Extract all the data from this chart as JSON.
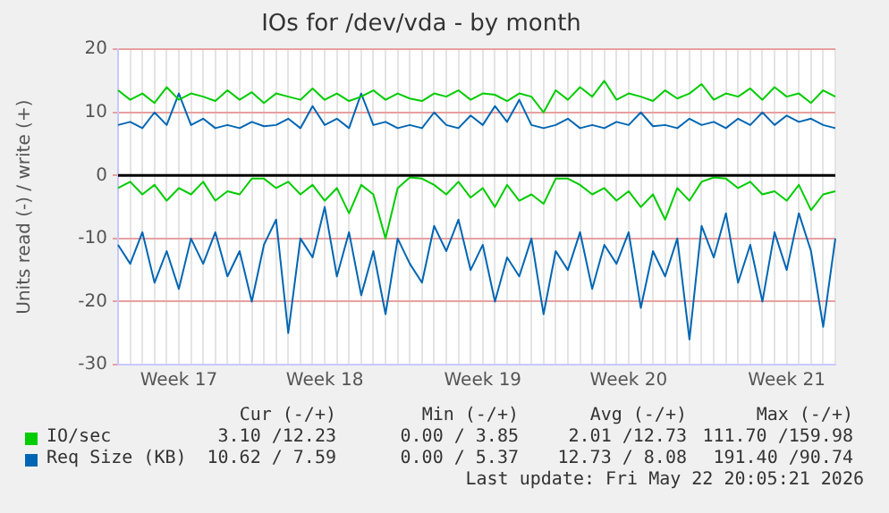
{
  "chart_data": {
    "type": "line",
    "title": "IOs for /dev/vda - by month",
    "ylabel": "Units read (-) / write (+)",
    "categories": [
      null,
      null,
      null,
      null,
      null,
      "Week 17",
      null,
      null,
      null,
      null,
      null,
      null,
      null,
      null,
      null,
      null,
      null,
      "Week 18",
      null,
      null,
      null,
      null,
      null,
      null,
      null,
      null,
      null,
      null,
      null,
      null,
      "Week 19",
      null,
      null,
      null,
      null,
      null,
      null,
      null,
      null,
      null,
      null,
      null,
      "Week 20",
      null,
      null,
      null,
      null,
      null,
      null,
      null,
      null,
      null,
      null,
      null,
      null,
      "Week 21",
      null,
      null,
      null,
      null
    ],
    "ylim": [
      -30,
      20
    ],
    "yticks": [
      -30,
      -20,
      -10,
      0,
      10,
      20
    ],
    "grid": true,
    "legend": "bottom",
    "marker": "none",
    "line_style": "solid",
    "ref_lines": [
      {
        "axis": "y",
        "value": 0,
        "color": "#000000"
      }
    ],
    "series": [
      {
        "color": "#00cc00",
        "values": [
          -2,
          -1,
          -3,
          -1.5,
          -4,
          -2,
          -3,
          -1,
          -4,
          -2.5,
          -3,
          -0.5,
          -0.5,
          -2,
          -1,
          -3,
          -1.5,
          -4,
          -2,
          -6,
          -1.5,
          -3,
          -10,
          -2,
          -0.3,
          -0.5,
          -1.5,
          -3,
          -1,
          -3.5,
          -2,
          -5,
          -1.5,
          -4,
          -3,
          -4.5,
          -0.5,
          -0.5,
          -1.5,
          -3,
          -2,
          -4,
          -2.5,
          -5,
          -3,
          -7,
          -2,
          -4,
          -1,
          -0.3,
          -0.5,
          -2,
          -1,
          -3,
          -2.5,
          -4,
          -1.5,
          -5.5,
          -3,
          -2.5
        ]
      },
      {
        "name": "IO/sec",
        "color": "#00cc00",
        "values": [
          13.5,
          12,
          13,
          11.5,
          14,
          12,
          13,
          12.5,
          11.8,
          13.5,
          12,
          13.2,
          11.5,
          13,
          12.5,
          12,
          13.8,
          12,
          13,
          11.8,
          12.5,
          13.5,
          12,
          13,
          12.2,
          11.8,
          13,
          12.5,
          13.5,
          12,
          13,
          12.8,
          11.8,
          13,
          12.5,
          10,
          13.5,
          12,
          14,
          12.5,
          15,
          12,
          13,
          12.5,
          11.8,
          13.5,
          12.2,
          13,
          14.5,
          12,
          13,
          12.5,
          13.8,
          12,
          14,
          12.5,
          13,
          11.5,
          13.5,
          12.5
        ]
      },
      {
        "color": "#0066b3",
        "values": [
          -11,
          -14,
          -9,
          -17,
          -12,
          -18,
          -10,
          -14,
          -9,
          -16,
          -12,
          -20,
          -11,
          -7,
          -25,
          -10,
          -13,
          -5,
          -16,
          -9,
          -19,
          -12,
          -22,
          -10,
          -14,
          -17,
          -8,
          -12,
          -7,
          -15,
          -11,
          -20,
          -13,
          -16,
          -10,
          -22,
          -12,
          -15,
          -9,
          -18,
          -11,
          -14,
          -9,
          -21,
          -12,
          -16,
          -10,
          -26,
          -8,
          -13,
          -6,
          -17,
          -11,
          -20,
          -9,
          -15,
          -6,
          -12,
          -24,
          -10
        ]
      },
      {
        "name": "Req Size (KB)",
        "color": "#0066b3",
        "values": [
          8,
          8.5,
          7.5,
          10,
          8,
          13,
          8,
          9,
          7.5,
          8,
          7.5,
          8.5,
          7.8,
          8,
          9,
          7.5,
          11,
          8,
          9,
          7.5,
          13,
          8,
          8.5,
          7.5,
          8,
          7.5,
          10,
          8,
          7.5,
          9.5,
          8,
          11,
          8.5,
          12,
          8,
          7.5,
          8,
          9,
          7.5,
          8,
          7.5,
          8.5,
          8,
          10,
          7.8,
          8,
          7.5,
          9,
          8,
          8.5,
          7.5,
          9,
          8,
          10,
          8,
          9.5,
          8.5,
          9,
          8,
          7.5
        ]
      }
    ],
    "annotations": [
      "Cur (-/+)",
      "Min (-/+)",
      "Avg (-/+)",
      "Max (-/+)",
      "3.10 /12.23",
      "0.00 / 3.85",
      "2.01 /12.73",
      "111.70 /159.98",
      "10.62 / 7.59",
      "0.00 / 5.37",
      "12.73 / 8.08",
      "191.40 /90.74",
      "Last update: Fri May 22 20:05:21 2026"
    ]
  }
}
